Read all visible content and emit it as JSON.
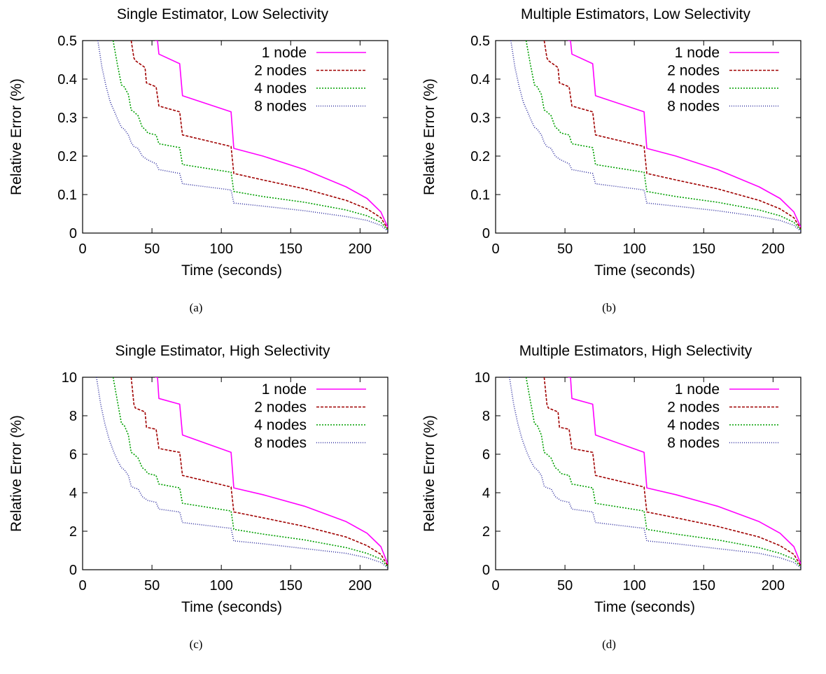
{
  "chart_data": [
    {
      "type": "line",
      "title": "Single Estimator, Low Selectivity",
      "caption": "(a)",
      "xlabel": "Time (seconds)",
      "ylabel": "Relative Error (%)",
      "xlim": [
        0,
        220
      ],
      "ylim": [
        0,
        0.5
      ],
      "xticks": [
        0,
        50,
        100,
        150,
        200
      ],
      "xtick_labels": [
        "0",
        "50",
        "100",
        "150",
        "200"
      ],
      "yticks": [
        0,
        0.1,
        0.2,
        0.3,
        0.4,
        0.5
      ],
      "ytick_labels": [
        "0",
        "0.1",
        "0.2",
        "0.3",
        "0.4",
        "0.5"
      ],
      "legend_position": "top-right",
      "series": [
        {
          "name": "1 node",
          "color": "#ff00ff",
          "dash": "",
          "x": [
            52,
            54,
            55,
            70,
            72,
            107,
            109,
            130,
            160,
            190,
            205,
            215,
            220
          ],
          "y": [
            0.5,
            0.5,
            0.465,
            0.44,
            0.357,
            0.315,
            0.22,
            0.2,
            0.165,
            0.12,
            0.09,
            0.055,
            0.015
          ]
        },
        {
          "name": "2 nodes",
          "color": "#a00000",
          "dash": "4,2",
          "x": [
            35,
            37,
            38,
            45,
            46,
            53,
            55,
            70,
            72,
            107,
            109,
            130,
            160,
            190,
            205,
            215,
            220
          ],
          "y": [
            0.5,
            0.455,
            0.448,
            0.43,
            0.39,
            0.38,
            0.33,
            0.315,
            0.255,
            0.225,
            0.155,
            0.138,
            0.115,
            0.085,
            0.063,
            0.04,
            0.01
          ]
        },
        {
          "name": "4 nodes",
          "color": "#00a000",
          "dash": "2,2",
          "x": [
            22,
            25,
            28,
            30,
            33,
            35,
            37,
            40,
            43,
            45,
            47,
            53,
            55,
            70,
            72,
            107,
            109,
            130,
            160,
            190,
            205,
            215,
            220
          ],
          "y": [
            0.5,
            0.44,
            0.385,
            0.38,
            0.36,
            0.32,
            0.315,
            0.305,
            0.275,
            0.27,
            0.26,
            0.255,
            0.232,
            0.222,
            0.178,
            0.158,
            0.108,
            0.095,
            0.08,
            0.06,
            0.045,
            0.028,
            0.008
          ]
        },
        {
          "name": "8 nodes",
          "color": "#3030a0",
          "dash": "1,2",
          "x": [
            11,
            14,
            17,
            20,
            23,
            26,
            28,
            30,
            33,
            35,
            37,
            40,
            43,
            45,
            47,
            53,
            55,
            70,
            72,
            107,
            109,
            130,
            160,
            190,
            205,
            215,
            220
          ],
          "y": [
            0.5,
            0.43,
            0.38,
            0.34,
            0.315,
            0.29,
            0.275,
            0.27,
            0.255,
            0.235,
            0.225,
            0.22,
            0.2,
            0.195,
            0.19,
            0.18,
            0.165,
            0.155,
            0.128,
            0.112,
            0.078,
            0.07,
            0.058,
            0.043,
            0.033,
            0.02,
            0.005
          ]
        }
      ]
    },
    {
      "type": "line",
      "title": "Multiple Estimators, Low Selectivity",
      "caption": "(b)",
      "xlabel": "Time (seconds)",
      "ylabel": "Relative Error (%)",
      "xlim": [
        0,
        220
      ],
      "ylim": [
        0,
        0.5
      ],
      "xticks": [
        0,
        50,
        100,
        150,
        200
      ],
      "xtick_labels": [
        "0",
        "50",
        "100",
        "150",
        "200"
      ],
      "yticks": [
        0,
        0.1,
        0.2,
        0.3,
        0.4,
        0.5
      ],
      "ytick_labels": [
        "0",
        "0.1",
        "0.2",
        "0.3",
        "0.4",
        "0.5"
      ],
      "legend_position": "top-right",
      "series": [
        {
          "name": "1 node",
          "color": "#ff00ff",
          "dash": "",
          "x": [
            52,
            54,
            55,
            70,
            72,
            107,
            109,
            130,
            160,
            190,
            205,
            215,
            220
          ],
          "y": [
            0.5,
            0.5,
            0.465,
            0.44,
            0.357,
            0.315,
            0.22,
            0.2,
            0.165,
            0.12,
            0.09,
            0.055,
            0.015
          ]
        },
        {
          "name": "2 nodes",
          "color": "#a00000",
          "dash": "4,2",
          "x": [
            35,
            37,
            38,
            45,
            46,
            53,
            55,
            70,
            72,
            107,
            109,
            130,
            160,
            190,
            205,
            215,
            220
          ],
          "y": [
            0.5,
            0.455,
            0.448,
            0.43,
            0.39,
            0.38,
            0.33,
            0.315,
            0.255,
            0.225,
            0.155,
            0.138,
            0.115,
            0.085,
            0.063,
            0.04,
            0.01
          ]
        },
        {
          "name": "4 nodes",
          "color": "#00a000",
          "dash": "2,2",
          "x": [
            22,
            25,
            28,
            30,
            33,
            35,
            37,
            40,
            43,
            45,
            47,
            53,
            55,
            70,
            72,
            107,
            109,
            130,
            160,
            190,
            205,
            215,
            220
          ],
          "y": [
            0.5,
            0.44,
            0.385,
            0.38,
            0.36,
            0.32,
            0.315,
            0.305,
            0.275,
            0.27,
            0.26,
            0.255,
            0.232,
            0.222,
            0.178,
            0.158,
            0.108,
            0.095,
            0.08,
            0.06,
            0.045,
            0.028,
            0.008
          ]
        },
        {
          "name": "8 nodes",
          "color": "#3030a0",
          "dash": "1,2",
          "x": [
            11,
            14,
            17,
            20,
            23,
            26,
            28,
            30,
            33,
            35,
            37,
            40,
            43,
            45,
            47,
            53,
            55,
            70,
            72,
            107,
            109,
            130,
            160,
            190,
            205,
            215,
            220
          ],
          "y": [
            0.5,
            0.43,
            0.38,
            0.34,
            0.315,
            0.29,
            0.275,
            0.27,
            0.255,
            0.235,
            0.225,
            0.22,
            0.2,
            0.195,
            0.19,
            0.18,
            0.165,
            0.155,
            0.128,
            0.112,
            0.078,
            0.07,
            0.058,
            0.043,
            0.033,
            0.02,
            0.005
          ]
        }
      ]
    },
    {
      "type": "line",
      "title": "Single Estimator, High Selectivity",
      "caption": "(c)",
      "xlabel": "Time (seconds)",
      "ylabel": "Relative Error (%)",
      "xlim": [
        0,
        220
      ],
      "ylim": [
        0,
        10
      ],
      "xticks": [
        0,
        50,
        100,
        150,
        200
      ],
      "xtick_labels": [
        "0",
        "50",
        "100",
        "150",
        "200"
      ],
      "yticks": [
        0,
        2,
        4,
        6,
        8,
        10
      ],
      "ytick_labels": [
        "0",
        "2",
        "4",
        "6",
        "8",
        "10"
      ],
      "legend_position": "top-right",
      "series": [
        {
          "name": "1 node",
          "color": "#ff00ff",
          "dash": "",
          "x": [
            52,
            54,
            55,
            70,
            72,
            107,
            109,
            130,
            160,
            190,
            205,
            215,
            220
          ],
          "y": [
            10,
            10,
            8.9,
            8.6,
            7.0,
            6.1,
            4.25,
            3.9,
            3.3,
            2.5,
            1.9,
            1.2,
            0.3
          ]
        },
        {
          "name": "2 nodes",
          "color": "#a00000",
          "dash": "4,2",
          "x": [
            35,
            37,
            38,
            45,
            46,
            53,
            55,
            70,
            72,
            107,
            109,
            130,
            160,
            190,
            205,
            215,
            220
          ],
          "y": [
            10,
            8.6,
            8.4,
            8.2,
            7.4,
            7.3,
            6.3,
            6.1,
            4.9,
            4.3,
            3.0,
            2.7,
            2.25,
            1.7,
            1.25,
            0.8,
            0.2
          ]
        },
        {
          "name": "4 nodes",
          "color": "#00a000",
          "dash": "2,2",
          "x": [
            22,
            25,
            28,
            30,
            33,
            35,
            37,
            40,
            43,
            45,
            47,
            53,
            55,
            70,
            72,
            107,
            109,
            130,
            160,
            190,
            205,
            215,
            220
          ],
          "y": [
            10,
            8.8,
            7.6,
            7.5,
            7.0,
            6.1,
            6.0,
            5.8,
            5.3,
            5.2,
            5.0,
            4.9,
            4.45,
            4.25,
            3.45,
            3.05,
            2.1,
            1.85,
            1.55,
            1.15,
            0.85,
            0.55,
            0.15
          ]
        },
        {
          "name": "8 nodes",
          "color": "#3030a0",
          "dash": "1,2",
          "x": [
            10,
            13,
            16,
            19,
            22,
            25,
            28,
            30,
            33,
            35,
            37,
            40,
            43,
            45,
            47,
            53,
            55,
            70,
            72,
            107,
            109,
            130,
            160,
            190,
            205,
            215,
            220
          ],
          "y": [
            10,
            8.6,
            7.6,
            6.8,
            6.2,
            5.7,
            5.3,
            5.2,
            4.9,
            4.35,
            4.25,
            4.2,
            3.8,
            3.7,
            3.6,
            3.5,
            3.15,
            3.0,
            2.45,
            2.15,
            1.5,
            1.35,
            1.1,
            0.85,
            0.62,
            0.38,
            0.1
          ]
        }
      ]
    },
    {
      "type": "line",
      "title": "Multiple Estimators, High Selectivity",
      "caption": "(d)",
      "xlabel": "Time (seconds)",
      "ylabel": "Relative Error (%)",
      "xlim": [
        0,
        220
      ],
      "ylim": [
        0,
        10
      ],
      "xticks": [
        0,
        50,
        100,
        150,
        200
      ],
      "xtick_labels": [
        "0",
        "50",
        "100",
        "150",
        "200"
      ],
      "yticks": [
        0,
        2,
        4,
        6,
        8,
        10
      ],
      "ytick_labels": [
        "0",
        "2",
        "4",
        "6",
        "8",
        "10"
      ],
      "legend_position": "top-right",
      "series": [
        {
          "name": "1 node",
          "color": "#ff00ff",
          "dash": "",
          "x": [
            52,
            54,
            55,
            70,
            72,
            107,
            109,
            130,
            160,
            190,
            205,
            215,
            220
          ],
          "y": [
            10,
            10,
            8.9,
            8.6,
            7.0,
            6.1,
            4.25,
            3.9,
            3.3,
            2.5,
            1.9,
            1.2,
            0.3
          ]
        },
        {
          "name": "2 nodes",
          "color": "#a00000",
          "dash": "4,2",
          "x": [
            35,
            37,
            38,
            45,
            46,
            53,
            55,
            70,
            72,
            107,
            109,
            130,
            160,
            190,
            205,
            215,
            220
          ],
          "y": [
            10,
            8.6,
            8.4,
            8.2,
            7.4,
            7.3,
            6.3,
            6.1,
            4.9,
            4.3,
            3.0,
            2.7,
            2.25,
            1.7,
            1.25,
            0.8,
            0.2
          ]
        },
        {
          "name": "4 nodes",
          "color": "#00a000",
          "dash": "2,2",
          "x": [
            22,
            25,
            28,
            30,
            33,
            35,
            37,
            40,
            43,
            45,
            47,
            53,
            55,
            70,
            72,
            107,
            109,
            130,
            160,
            190,
            205,
            215,
            220
          ],
          "y": [
            10,
            8.8,
            7.6,
            7.5,
            7.0,
            6.1,
            6.0,
            5.8,
            5.3,
            5.2,
            5.0,
            4.9,
            4.45,
            4.25,
            3.45,
            3.05,
            2.1,
            1.85,
            1.55,
            1.15,
            0.85,
            0.55,
            0.15
          ]
        },
        {
          "name": "8 nodes",
          "color": "#3030a0",
          "dash": "1,2",
          "x": [
            10,
            13,
            16,
            19,
            22,
            25,
            28,
            30,
            33,
            35,
            37,
            40,
            43,
            45,
            47,
            53,
            55,
            70,
            72,
            107,
            109,
            130,
            160,
            190,
            205,
            215,
            220
          ],
          "y": [
            10,
            8.6,
            7.6,
            6.8,
            6.2,
            5.7,
            5.3,
            5.2,
            4.9,
            4.35,
            4.25,
            4.2,
            3.8,
            3.7,
            3.6,
            3.5,
            3.15,
            3.0,
            2.45,
            2.15,
            1.5,
            1.35,
            1.1,
            0.85,
            0.62,
            0.38,
            0.1
          ]
        }
      ]
    }
  ]
}
